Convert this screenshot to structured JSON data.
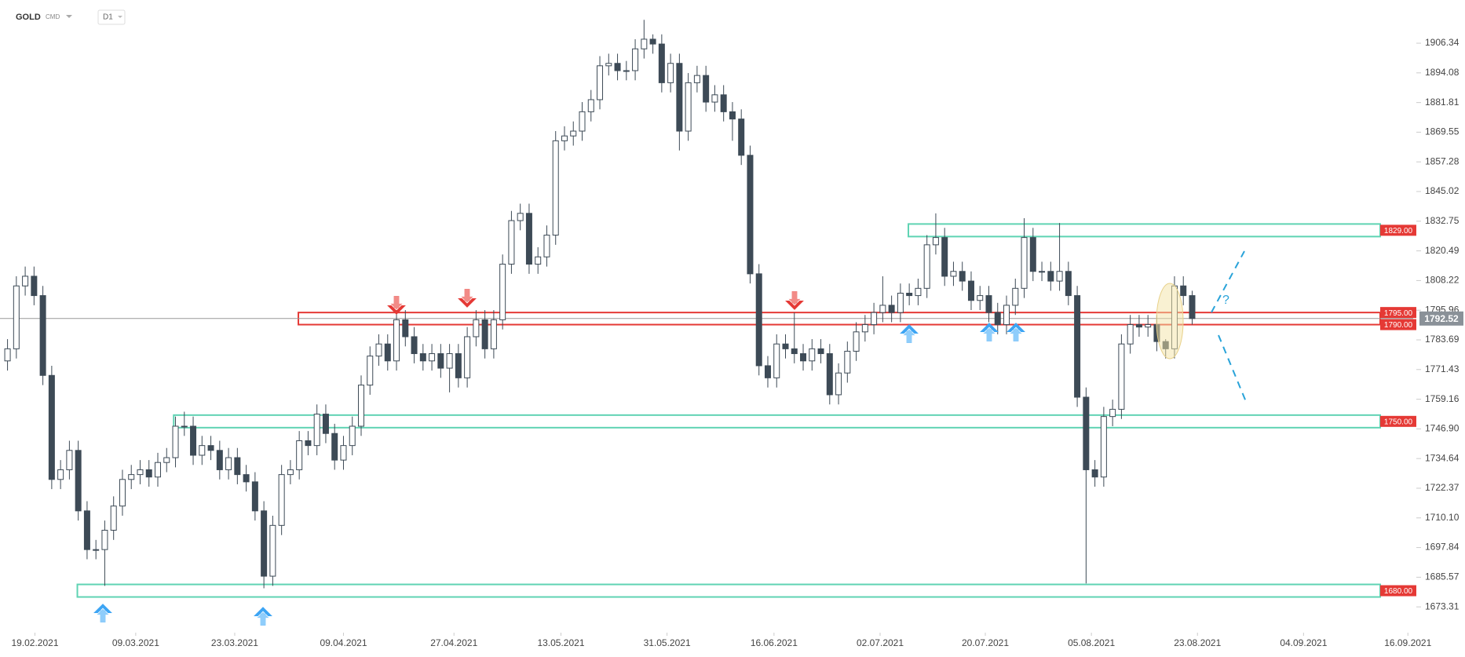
{
  "header": {
    "symbol": "GOLD",
    "market": "CMD",
    "interval": "D1"
  },
  "chart_data": {
    "type": "candlestick",
    "up_color": "#ffffff",
    "down_color": "#3d4a56",
    "outline_color": "#3d4a56",
    "open": [
      1775,
      1780,
      1806,
      1810,
      1802,
      1769,
      1726,
      1730,
      1738,
      1713,
      1697,
      1697,
      1705,
      1715,
      1726,
      1728,
      1730,
      1727,
      1733,
      1735,
      1748,
      1748,
      1736,
      1740,
      1738,
      1730,
      1735,
      1728,
      1725,
      1713,
      1686,
      1707,
      1728,
      1730,
      1742,
      1740,
      1753,
      1745,
      1734,
      1740,
      1748,
      1765,
      1777,
      1782,
      1775,
      1792,
      1785,
      1778,
      1775,
      1778,
      1772,
      1778,
      1768,
      1785,
      1792,
      1780,
      1792,
      1815,
      1833,
      1836,
      1815,
      1818,
      1827,
      1866,
      1868,
      1870,
      1878,
      1883,
      1897,
      1898,
      1895,
      1895,
      1904,
      1908,
      1906,
      1890,
      1898,
      1870,
      1890,
      1893,
      1882,
      1885,
      1878,
      1875,
      1860,
      1811,
      1773,
      1768,
      1782,
      1780,
      1778,
      1775,
      1780,
      1778,
      1761,
      1770,
      1779,
      1787,
      1790,
      1795,
      1798,
      1795,
      1803,
      1802,
      1805,
      1823,
      1826,
      1810,
      1812,
      1808,
      1800,
      1802,
      1795,
      1790,
      1798,
      1805,
      1826,
      1812,
      1812,
      1808,
      1812,
      1802,
      1760,
      1730,
      1727,
      1752,
      1755,
      1782,
      1790,
      1789,
      1790,
      1783,
      1780,
      1806,
      1802
    ],
    "high": [
      1784,
      1810,
      1814,
      1814,
      1806,
      1773,
      1734,
      1742,
      1742,
      1717,
      1701,
      1709,
      1719,
      1730,
      1732,
      1734,
      1734,
      1737,
      1739,
      1752,
      1754,
      1752,
      1744,
      1744,
      1742,
      1739,
      1739,
      1732,
      1729,
      1717,
      1711,
      1732,
      1734,
      1746,
      1746,
      1757,
      1757,
      1749,
      1744,
      1752,
      1769,
      1781,
      1786,
      1786,
      1796,
      1796,
      1789,
      1782,
      1782,
      1782,
      1782,
      1782,
      1789,
      1796,
      1796,
      1796,
      1819,
      1837,
      1840,
      1840,
      1822,
      1831,
      1870,
      1872,
      1874,
      1882,
      1887,
      1901,
      1902,
      1902,
      1899,
      1908,
      1916,
      1910,
      1910,
      1902,
      1902,
      1894,
      1897,
      1897,
      1889,
      1889,
      1882,
      1879,
      1864,
      1815,
      1777,
      1786,
      1786,
      1795,
      1782,
      1784,
      1784,
      1782,
      1774,
      1783,
      1791,
      1794,
      1799,
      1810,
      1802,
      1807,
      1807,
      1809,
      1827,
      1836,
      1830,
      1816,
      1816,
      1812,
      1806,
      1806,
      1799,
      1802,
      1809,
      1834,
      1830,
      1816,
      1816,
      1832,
      1816,
      1806,
      1764,
      1734,
      1756,
      1759,
      1786,
      1794,
      1794,
      1794,
      1794,
      1784,
      1810,
      1810,
      1804
    ],
    "low": [
      1771,
      1776,
      1802,
      1798,
      1765,
      1722,
      1722,
      1726,
      1709,
      1693,
      1693,
      1682,
      1701,
      1711,
      1722,
      1724,
      1723,
      1723,
      1729,
      1731,
      1744,
      1732,
      1732,
      1734,
      1726,
      1726,
      1724,
      1721,
      1709,
      1681,
      1682,
      1703,
      1724,
      1726,
      1736,
      1736,
      1741,
      1730,
      1730,
      1736,
      1744,
      1761,
      1773,
      1771,
      1771,
      1781,
      1774,
      1771,
      1771,
      1768,
      1762,
      1764,
      1764,
      1781,
      1776,
      1776,
      1788,
      1811,
      1829,
      1811,
      1811,
      1814,
      1823,
      1862,
      1864,
      1866,
      1874,
      1879,
      1893,
      1891,
      1891,
      1891,
      1900,
      1902,
      1886,
      1886,
      1862,
      1866,
      1886,
      1878,
      1878,
      1874,
      1866,
      1856,
      1807,
      1769,
      1764,
      1764,
      1776,
      1774,
      1771,
      1771,
      1774,
      1757,
      1757,
      1766,
      1775,
      1783,
      1786,
      1791,
      1791,
      1791,
      1798,
      1798,
      1801,
      1819,
      1806,
      1806,
      1804,
      1796,
      1796,
      1791,
      1786,
      1786,
      1794,
      1801,
      1808,
      1808,
      1804,
      1804,
      1798,
      1756,
      1683,
      1723,
      1723,
      1748,
      1751,
      1778,
      1785,
      1785,
      1779,
      1776,
      1776,
      1798,
      1790
    ],
    "close": [
      1780,
      1806,
      1810,
      1802,
      1769,
      1726,
      1730,
      1738,
      1713,
      1697,
      1697,
      1705,
      1715,
      1726,
      1728,
      1730,
      1727,
      1733,
      1735,
      1748,
      1748,
      1736,
      1740,
      1738,
      1730,
      1735,
      1728,
      1725,
      1713,
      1686,
      1707,
      1728,
      1730,
      1742,
      1740,
      1753,
      1745,
      1734,
      1740,
      1748,
      1765,
      1777,
      1782,
      1775,
      1792,
      1785,
      1778,
      1775,
      1778,
      1772,
      1778,
      1768,
      1785,
      1792,
      1780,
      1792,
      1815,
      1833,
      1836,
      1815,
      1818,
      1827,
      1866,
      1868,
      1870,
      1878,
      1883,
      1897,
      1898,
      1895,
      1895,
      1904,
      1908,
      1906,
      1890,
      1898,
      1870,
      1890,
      1893,
      1882,
      1885,
      1878,
      1875,
      1860,
      1811,
      1773,
      1768,
      1782,
      1780,
      1778,
      1775,
      1780,
      1778,
      1761,
      1770,
      1779,
      1787,
      1790,
      1795,
      1798,
      1795,
      1803,
      1802,
      1805,
      1823,
      1826,
      1810,
      1812,
      1808,
      1800,
      1802,
      1795,
      1790,
      1798,
      1805,
      1826,
      1812,
      1812,
      1808,
      1812,
      1802,
      1760,
      1730,
      1727,
      1752,
      1755,
      1782,
      1790,
      1789,
      1790,
      1783,
      1780,
      1806,
      1802,
      1792.52
    ],
    "last_price": 1792.52,
    "xlim": [
      -0.85,
      159
    ],
    "xticks": [
      {
        "value": 3.1,
        "label": "19.02.2021"
      },
      {
        "value": 14.5,
        "label": "09.03.2021"
      },
      {
        "value": 25.7,
        "label": "23.03.2021"
      },
      {
        "value": 38.0,
        "label": "09.04.2021"
      },
      {
        "value": 50.5,
        "label": "27.04.2021"
      },
      {
        "value": 62.6,
        "label": "13.05.2021"
      },
      {
        "value": 74.6,
        "label": "31.05.2021"
      },
      {
        "value": 86.7,
        "label": "16.06.2021"
      },
      {
        "value": 98.7,
        "label": "02.07.2021"
      },
      {
        "value": 110.6,
        "label": "20.07.2021"
      },
      {
        "value": 122.6,
        "label": "05.08.2021"
      },
      {
        "value": 134.6,
        "label": "23.08.2021"
      },
      {
        "value": 146.6,
        "label": "04.09.2021"
      },
      {
        "value": 158.4,
        "label": "16.09.2021"
      }
    ],
    "ylim": [
      1663.3,
      1924.2
    ],
    "yticks": [
      1906.34,
      1894.08,
      1881.81,
      1869.55,
      1857.28,
      1845.02,
      1832.75,
      1820.49,
      1808.22,
      1795.96,
      1783.69,
      1771.43,
      1759.16,
      {
        "value": 1746.9,
        "label": "1746.90"
      },
      1734.64,
      1722.37,
      {
        "value": 1710.1,
        "label": "1710.10"
      },
      1697.84,
      1685.57,
      1673.31
    ],
    "zones": [
      {
        "top": {
          "value": 1829,
          "label": "1829.00"
        },
        "color": "#5fd3b3"
      },
      {
        "top": {
          "value": 1795,
          "label": "1795.00"
        },
        "bottom": {
          "value": 1790,
          "label": "1790.00"
        },
        "color": "#e53935"
      },
      {
        "top": {
          "value": 1750,
          "label": "1750.00"
        },
        "color": "#5fd3b3"
      },
      {
        "top": {
          "value": 1680,
          "label": "1680.00"
        },
        "color": "#5fd3b3"
      }
    ],
    "annotation": "?"
  }
}
